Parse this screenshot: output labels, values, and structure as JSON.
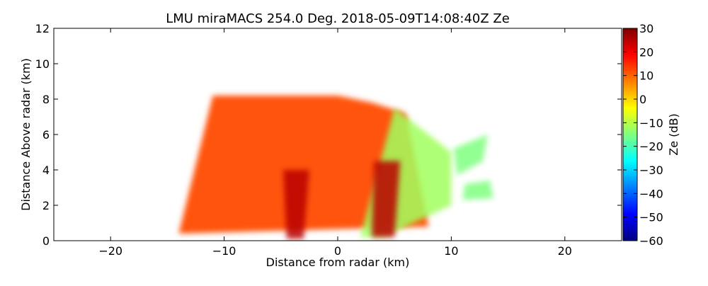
{
  "chart_data": {
    "type": "heatmap",
    "title": "LMU miraMACS 254.0 Deg. 2018-05-09T14:08:40Z  Ze",
    "xlabel": "Distance from radar (km)",
    "ylabel": "Distance Above radar  (km)",
    "xlim": [
      -25,
      25
    ],
    "ylim": [
      0,
      12
    ],
    "xticks": [
      "−20",
      "−10",
      "0",
      "10",
      "20"
    ],
    "xtick_values": [
      -20,
      -10,
      0,
      10,
      20
    ],
    "yticks": [
      "0",
      "2",
      "4",
      "6",
      "8",
      "10",
      "12"
    ],
    "ytick_values": [
      0,
      2,
      4,
      6,
      8,
      10,
      12
    ],
    "colorbar": {
      "label": "Ze (dB)",
      "range": [
        -60,
        30
      ],
      "ticks": [
        "30",
        "20",
        "10",
        "0",
        "−10",
        "−20",
        "−30",
        "−40",
        "−50",
        "−60"
      ],
      "tick_values": [
        30,
        20,
        10,
        0,
        -10,
        -20,
        -30,
        -40,
        -50,
        -60
      ],
      "colormap": "jet"
    },
    "colors": {
      "jet_stops": [
        "#00007f",
        "#0000ff",
        "#007fff",
        "#00ffff",
        "#7fff7f",
        "#ffff00",
        "#ff7f00",
        "#ff0000",
        "#7f0000"
      ]
    },
    "regions": [
      {
        "x": [
          -14,
          -11,
          -8,
          -4,
          0,
          3,
          6,
          8
        ],
        "y": [
          0.4,
          8.2,
          8.2,
          8.2,
          8.2,
          7.8,
          7.2,
          0.8
        ],
        "ze": 12
      },
      {
        "x": [
          -3,
          2,
          5,
          10,
          10,
          4
        ],
        "y": [
          0.2,
          0.2,
          7.5,
          5.0,
          2.0,
          0.2
        ],
        "ze": -12
      },
      {
        "x": [
          -4.5,
          -3.0,
          -2.5,
          -4.8
        ],
        "y": [
          0.1,
          0.1,
          4.0,
          4.0
        ],
        "ze": 25
      },
      {
        "x": [
          3.0,
          5.0,
          5.5,
          3.2
        ],
        "y": [
          0.2,
          0.2,
          4.5,
          4.5
        ],
        "ze": 25
      },
      {
        "x": [
          10.5,
          12.8,
          13.2,
          10.2
        ],
        "y": [
          3.7,
          4.5,
          6.0,
          5.2
        ],
        "ze": -15
      },
      {
        "x": [
          11.0,
          13.7,
          13.4,
          11.2
        ],
        "y": [
          2.3,
          2.4,
          3.4,
          3.2
        ],
        "ze": -15
      }
    ]
  }
}
